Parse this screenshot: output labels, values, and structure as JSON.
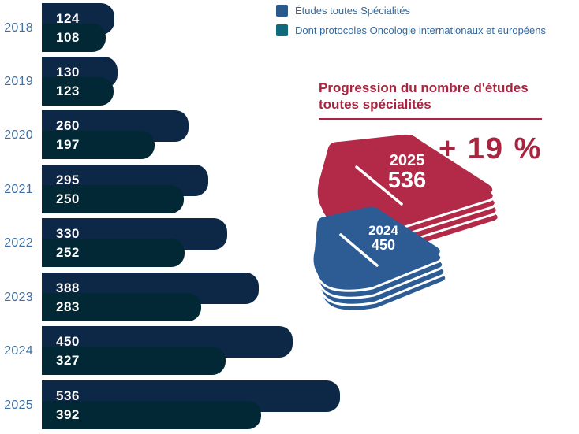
{
  "legend": {
    "items": [
      {
        "label": "Études toutes Spécialités",
        "color": "#2A5A8C"
      },
      {
        "label": "Dont protocoles Oncologie internationaux et européens",
        "color": "#10697C"
      }
    ]
  },
  "chart_data": {
    "type": "bar",
    "orientation": "horizontal",
    "categories": [
      "2018",
      "2019",
      "2020",
      "2021",
      "2022",
      "2023",
      "2024",
      "2025"
    ],
    "series": [
      {
        "name": "Études toutes Spécialités",
        "color": "#275888",
        "values": [
          124,
          130,
          260,
          295,
          330,
          388,
          450,
          536
        ]
      },
      {
        "name": "Dont protocoles Oncologie internationaux et européens",
        "color": "#076B7A",
        "values": [
          108,
          123,
          197,
          250,
          252,
          283,
          327,
          392
        ]
      }
    ],
    "value_labels": "inside-start",
    "xlim": [
      0,
      536
    ],
    "grid": false,
    "legend_position": "top-right"
  },
  "infographic": {
    "title_lines": [
      "Progression du nombre d'études",
      "toutes spécialités"
    ],
    "delta_label": "+ 19 %",
    "accent_color": "#A8253F",
    "year_label_color": "#3D6FA3",
    "books": [
      {
        "year": "2025",
        "value": "536",
        "color": "#B22A48"
      },
      {
        "year": "2024",
        "value": "450",
        "color": "#2D5C95"
      }
    ]
  }
}
